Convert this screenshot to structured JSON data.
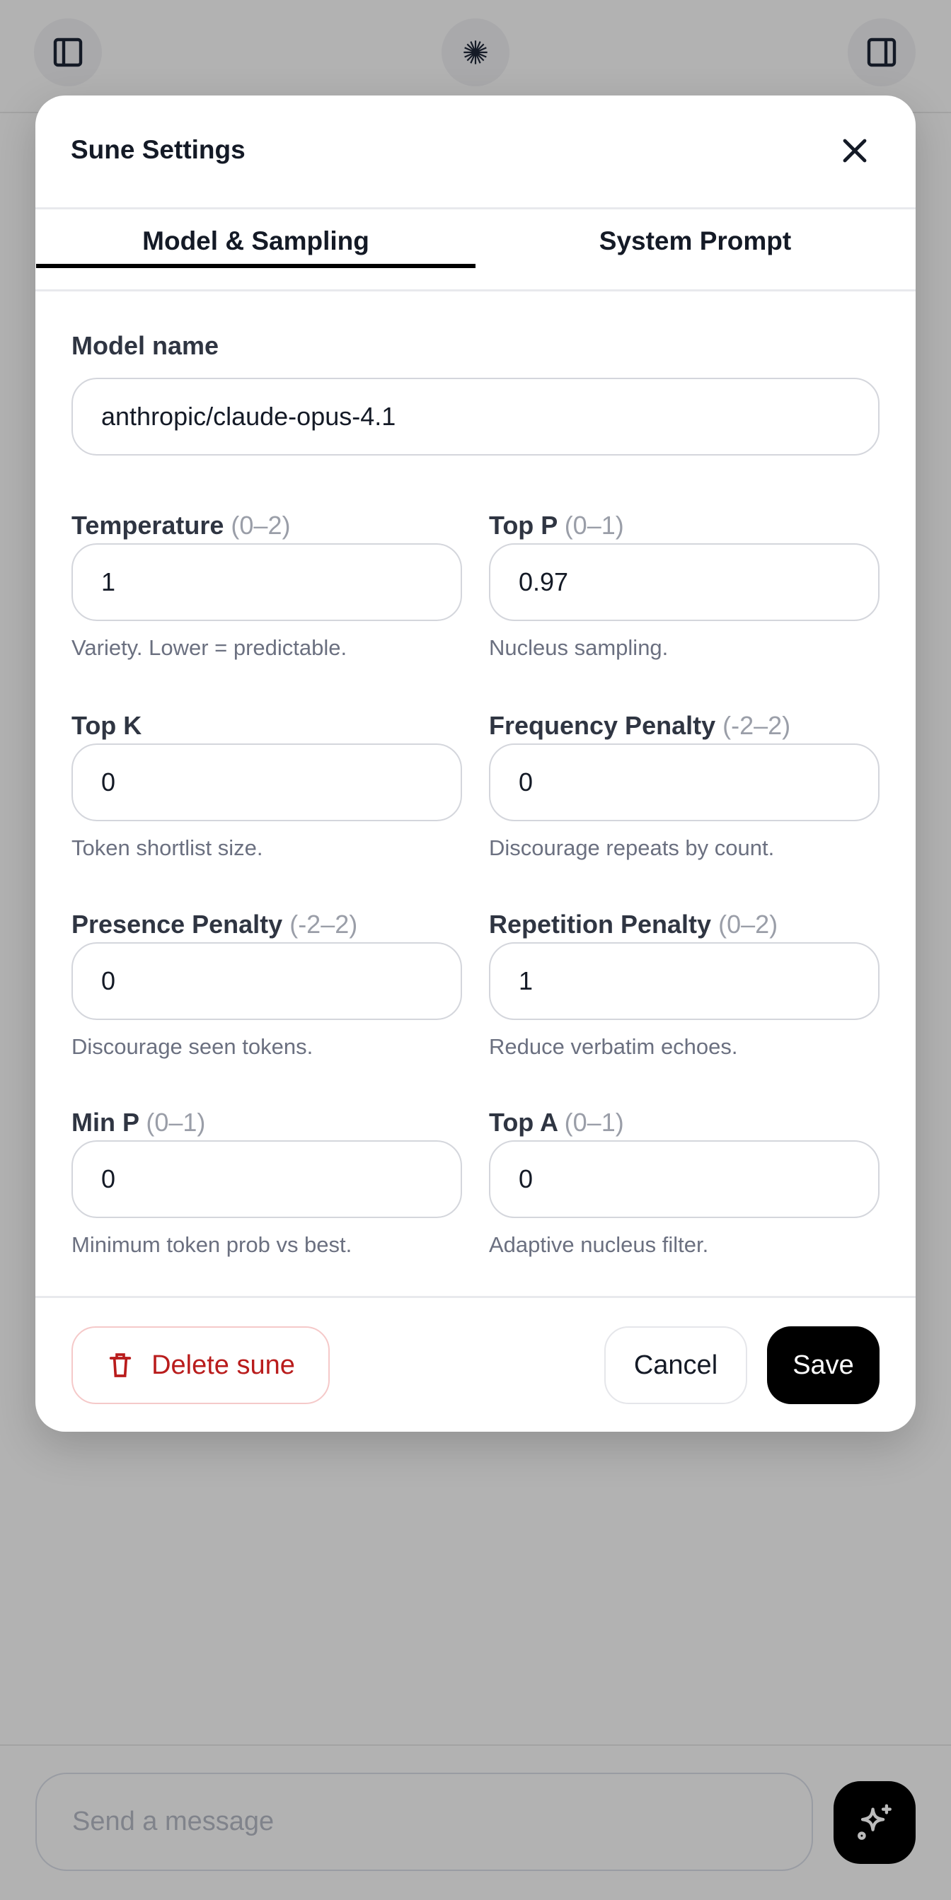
{
  "topbar": {
    "left_icon": "sidebar-left-icon",
    "center_icon": "sun-burst-icon",
    "right_icon": "sidebar-right-icon"
  },
  "modal": {
    "title": "Sune Settings",
    "tabs": [
      {
        "label": "Model & Sampling",
        "active": true
      },
      {
        "label": "System Prompt",
        "active": false
      }
    ],
    "model_name": {
      "label": "Model name",
      "value": "anthropic/claude-opus-4.1"
    },
    "fields": [
      {
        "label": "Temperature",
        "range": "(0–2)",
        "value": "1",
        "help": "Variety. Lower = predictable."
      },
      {
        "label": "Top P",
        "range": "(0–1)",
        "value": "0.97",
        "help": "Nucleus sampling."
      },
      {
        "label": "Top K",
        "range": "",
        "value": "0",
        "help": "Token shortlist size."
      },
      {
        "label": "Frequency Penalty",
        "range": "(-2–2)",
        "value": "0",
        "help": "Discourage repeats by count."
      },
      {
        "label": "Presence Penalty",
        "range": "(-2–2)",
        "value": "0",
        "help": "Discourage seen tokens."
      },
      {
        "label": "Repetition Penalty",
        "range": "(0–2)",
        "value": "1",
        "help": "Reduce verbatim echoes."
      },
      {
        "label": "Min P",
        "range": "(0–1)",
        "value": "0",
        "help": "Minimum token prob vs best."
      },
      {
        "label": "Top A",
        "range": "(0–1)",
        "value": "0",
        "help": "Adaptive nucleus filter."
      }
    ],
    "footer": {
      "delete_label": "Delete sune",
      "cancel_label": "Cancel",
      "save_label": "Save"
    }
  },
  "composer": {
    "placeholder": "Send a message",
    "send_icon": "sparkles-icon"
  },
  "colors": {
    "danger": "#b91c1c",
    "primary": "#000000",
    "overlay": "#b2b2b2"
  }
}
